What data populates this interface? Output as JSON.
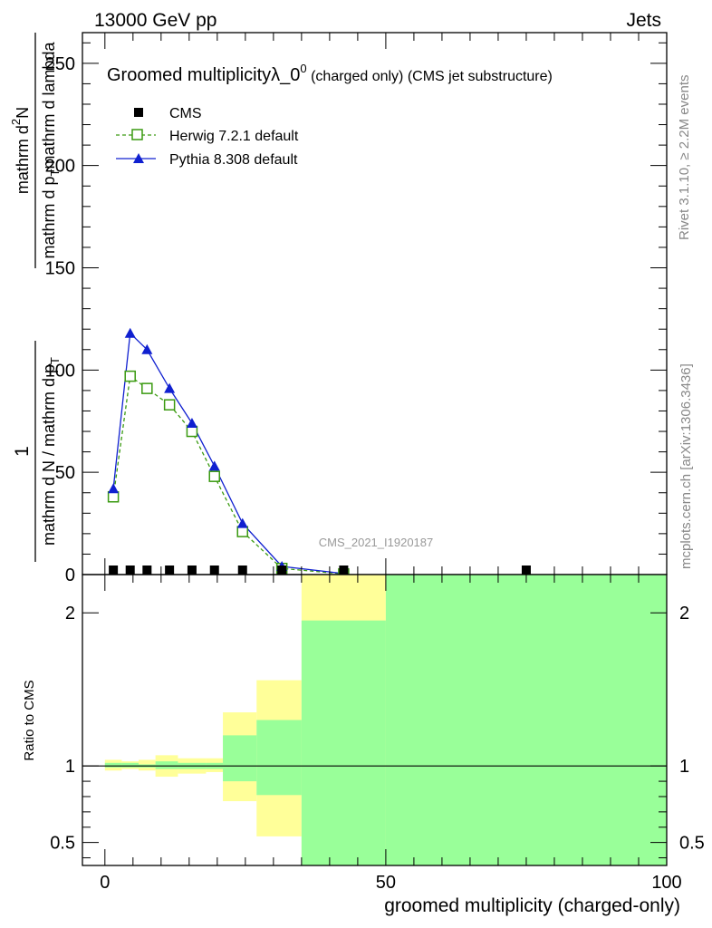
{
  "header": {
    "left": "13000 GeV pp",
    "right": "Jets"
  },
  "side_labels": {
    "rivet": "Rivet 3.1.10, ≥ 2.2M events",
    "mcplots": "mcplots.cern.ch [arXiv:1306.3436]"
  },
  "chart_data": [
    {
      "type": "line",
      "title_main": "Groomed multiplicityλ_0",
      "title_sup": "0",
      "title_paren": " (charged only) (CMS jet substructure)",
      "watermark": "CMS_2021_I1920187",
      "ylabel_parts": [
        "1",
        "mathrm d N / mathrm d p",
        "T",
        "mathrm d p",
        "T",
        "mathrm d lambda",
        "mathrm d",
        "2",
        "N"
      ],
      "xlim": [
        -4,
        100
      ],
      "ylim": [
        0,
        265
      ],
      "yticks": [
        0,
        50,
        100,
        150,
        200,
        250
      ],
      "ytick_labels": [
        "0",
        "50",
        "100",
        "150",
        "200",
        "250"
      ],
      "legend_position": "top-left",
      "series": [
        {
          "name": "CMS",
          "color": "#000000",
          "marker": "square-filled",
          "x": [
            1.5,
            4.5,
            7.5,
            11.5,
            15.5,
            19.5,
            24.5,
            31.5,
            42.5,
            75
          ],
          "y": [
            0.5,
            0.5,
            0.5,
            0.5,
            0.5,
            0.5,
            0.5,
            0.5,
            0.5,
            0.5
          ]
        },
        {
          "name": "Herwig 7.2.1 default",
          "color": "#3a9a10",
          "marker": "square-open",
          "line": "dashed",
          "x": [
            1.5,
            4.5,
            7.5,
            11.5,
            15.5,
            19.5,
            24.5,
            31.5,
            42.5
          ],
          "y": [
            38,
            97,
            91,
            83,
            70,
            48,
            21,
            3,
            0.3
          ]
        },
        {
          "name": "Pythia 8.308 default",
          "color": "#1020d0",
          "marker": "triangle-filled",
          "line": "solid",
          "x": [
            1.5,
            4.5,
            7.5,
            11.5,
            15.5,
            19.5,
            24.5,
            31.5,
            42.5
          ],
          "y": [
            42,
            118,
            110,
            91,
            74,
            53,
            25,
            4,
            0.5
          ]
        }
      ]
    },
    {
      "type": "area",
      "ylabel": "Ratio to CMS",
      "xlabel": "groomed multiplicity (charged-only)",
      "xlim": [
        -4,
        100
      ],
      "ylim": [
        0.35,
        2.25
      ],
      "xticks": [
        0,
        50,
        100
      ],
      "xtick_labels": [
        "0",
        "50",
        "100"
      ],
      "yticks": [
        0.5,
        1,
        2
      ],
      "ytick_labels": [
        "0.5",
        "1",
        "2"
      ],
      "reference_line": 1,
      "bands": [
        {
          "name": "yellow uncertainty band",
          "color": "#ffff99",
          "bins": [
            {
              "x0": 0,
              "x1": 3,
              "lo": 0.97,
              "hi": 1.04
            },
            {
              "x0": 3,
              "x1": 6,
              "lo": 0.98,
              "hi": 1.03
            },
            {
              "x0": 6,
              "x1": 9,
              "lo": 0.97,
              "hi": 1.04
            },
            {
              "x0": 9,
              "x1": 13,
              "lo": 0.93,
              "hi": 1.07
            },
            {
              "x0": 13,
              "x1": 18,
              "lo": 0.95,
              "hi": 1.05
            },
            {
              "x0": 18,
              "x1": 21,
              "lo": 0.96,
              "hi": 1.05
            },
            {
              "x0": 21,
              "x1": 27,
              "lo": 0.77,
              "hi": 1.35
            },
            {
              "x0": 27,
              "x1": 35,
              "lo": 0.54,
              "hi": 1.56
            },
            {
              "x0": 35,
              "x1": 50,
              "lo": 0.35,
              "hi": 2.25
            },
            {
              "x0": 50,
              "x1": 100,
              "lo": 0.35,
              "hi": 2.25
            }
          ]
        },
        {
          "name": "green uncertainty band",
          "color": "#99ff99",
          "bins": [
            {
              "x0": 0,
              "x1": 3,
              "lo": 0.99,
              "hi": 1.02
            },
            {
              "x0": 3,
              "x1": 6,
              "lo": 0.99,
              "hi": 1.02
            },
            {
              "x0": 6,
              "x1": 9,
              "lo": 0.99,
              "hi": 1.01
            },
            {
              "x0": 9,
              "x1": 13,
              "lo": 0.98,
              "hi": 1.03
            },
            {
              "x0": 13,
              "x1": 18,
              "lo": 0.98,
              "hi": 1.02
            },
            {
              "x0": 18,
              "x1": 21,
              "lo": 0.98,
              "hi": 1.02
            },
            {
              "x0": 21,
              "x1": 27,
              "lo": 0.9,
              "hi": 1.2
            },
            {
              "x0": 27,
              "x1": 35,
              "lo": 0.81,
              "hi": 1.3
            },
            {
              "x0": 35,
              "x1": 50,
              "lo": 0.35,
              "hi": 1.95
            },
            {
              "x0": 50,
              "x1": 100,
              "lo": 0.35,
              "hi": 2.25
            }
          ]
        }
      ]
    }
  ]
}
